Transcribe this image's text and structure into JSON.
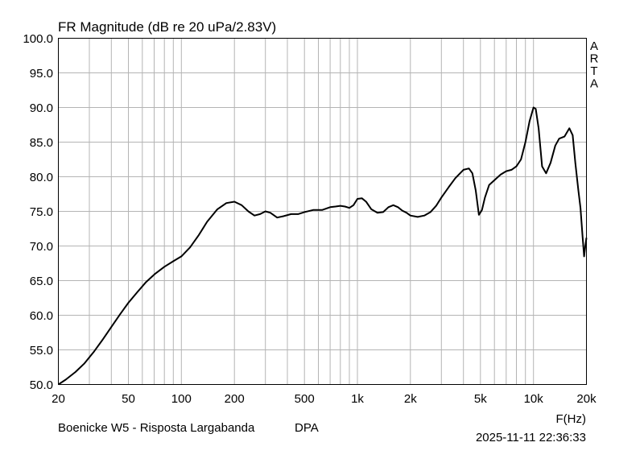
{
  "chart_data": {
    "type": "line",
    "title": "FR Magnitude (dB re 20 uPa/2.83V)",
    "xlabel": "F(Hz)",
    "ylabel": "",
    "x_scale": "log",
    "xlim": [
      20,
      20000
    ],
    "ylim": [
      50,
      100
    ],
    "grid": true,
    "x_ticks": [
      20,
      50,
      100,
      200,
      500,
      1000,
      2000,
      5000,
      10000,
      20000
    ],
    "x_tick_labels": [
      "20",
      "50",
      "100",
      "200",
      "500",
      "1k",
      "2k",
      "5k",
      "10k",
      "20k"
    ],
    "y_ticks": [
      50,
      55,
      60,
      65,
      70,
      75,
      80,
      85,
      90,
      95,
      100
    ],
    "y_tick_labels": [
      "50.0",
      "55.0",
      "60.0",
      "65.0",
      "70.0",
      "75.0",
      "80.0",
      "85.0",
      "90.0",
      "95.0",
      "100.0"
    ],
    "side_label": [
      "A",
      "R",
      "T",
      "A"
    ],
    "footer_left": "Boenicke W5 - Risposta Largabanda",
    "footer_mid": "DPA",
    "footer_right": "2025-11-11  22:36:33",
    "series": [
      {
        "x": [
          20,
          22,
          25,
          28,
          32,
          36,
          40,
          45,
          50,
          56,
          63,
          71,
          80,
          90,
          100,
          112,
          125,
          140,
          160,
          180,
          200,
          220,
          240,
          260,
          280,
          300,
          320,
          350,
          380,
          420,
          460,
          500,
          560,
          630,
          700,
          750,
          800,
          850,
          900,
          950,
          1000,
          1060,
          1120,
          1200,
          1300,
          1400,
          1500,
          1600,
          1700,
          1800,
          1900,
          2000,
          2200,
          2400,
          2600,
          2800,
          3000,
          3300,
          3600,
          4000,
          4300,
          4500,
          4700,
          4900,
          5100,
          5300,
          5600,
          6000,
          6500,
          7000,
          7500,
          8000,
          8500,
          9000,
          9500,
          10000,
          10300,
          10700,
          11200,
          11800,
          12500,
          13300,
          14000,
          15000,
          16000,
          16700,
          17300,
          18000,
          18500,
          19000,
          19400,
          19700,
          20000
        ],
        "y": [
          50.0,
          50.7,
          51.8,
          53.0,
          54.8,
          56.6,
          58.3,
          60.2,
          61.8,
          63.3,
          64.8,
          66.0,
          67.0,
          67.8,
          68.5,
          69.8,
          71.5,
          73.5,
          75.3,
          76.2,
          76.4,
          75.9,
          75.0,
          74.4,
          74.6,
          75.0,
          74.8,
          74.1,
          74.3,
          74.6,
          74.6,
          74.9,
          75.2,
          75.2,
          75.6,
          75.7,
          75.8,
          75.7,
          75.5,
          75.9,
          76.8,
          76.9,
          76.4,
          75.3,
          74.8,
          74.9,
          75.6,
          75.9,
          75.6,
          75.1,
          74.8,
          74.4,
          74.2,
          74.4,
          74.9,
          75.8,
          77.0,
          78.5,
          79.8,
          81.0,
          81.2,
          80.5,
          78.0,
          74.5,
          75.2,
          77.0,
          78.8,
          79.5,
          80.3,
          80.8,
          81.0,
          81.5,
          82.5,
          85.0,
          88.0,
          90.0,
          89.8,
          87.0,
          81.5,
          80.5,
          82.0,
          84.5,
          85.5,
          85.8,
          87.0,
          86.0,
          82.0,
          78.0,
          75.5,
          71.5,
          68.5,
          70.0,
          71.2
        ]
      }
    ]
  }
}
